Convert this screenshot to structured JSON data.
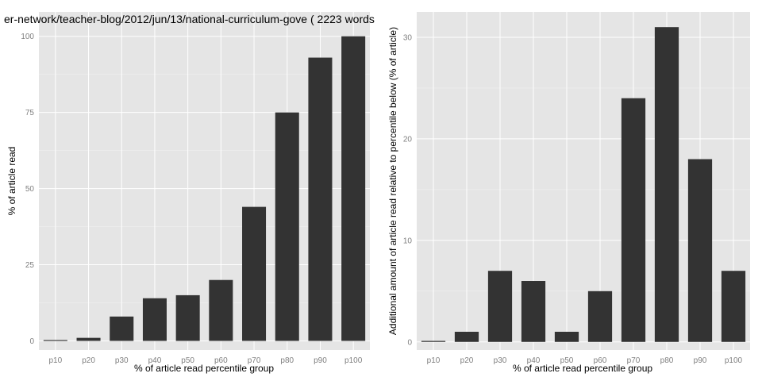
{
  "chart_data": [
    {
      "type": "bar",
      "title": "er-network/teacher-blog/2012/jun/13/national-curriculum-gove ( 2223 words",
      "xlabel": "% of article read percentile group",
      "ylabel": "% of article read",
      "categories": [
        "p10",
        "p20",
        "p30",
        "p40",
        "p50",
        "p60",
        "p70",
        "p80",
        "p90",
        "p100"
      ],
      "values": [
        0.3,
        1,
        8,
        14,
        15,
        20,
        44,
        75,
        93,
        100
      ],
      "ylim": [
        -3,
        108
      ],
      "yticks": [
        0,
        25,
        50,
        75,
        100
      ],
      "grid": true,
      "panel_bg": "#e5e5e5",
      "bar_color": "#333333"
    },
    {
      "type": "bar",
      "title": "",
      "xlabel": "% of article read percentile group",
      "ylabel": "Additional amount of article read relative to percentile below (% of article)",
      "categories": [
        "p10",
        "p20",
        "p30",
        "p40",
        "p50",
        "p60",
        "p70",
        "p80",
        "p90",
        "p100"
      ],
      "values": [
        0.1,
        1,
        7,
        6,
        1,
        5,
        24,
        31,
        18,
        7
      ],
      "ylim": [
        -0.8,
        32.5
      ],
      "yticks": [
        0,
        10,
        20,
        30
      ],
      "grid": true,
      "panel_bg": "#e5e5e5",
      "bar_color": "#333333"
    }
  ]
}
